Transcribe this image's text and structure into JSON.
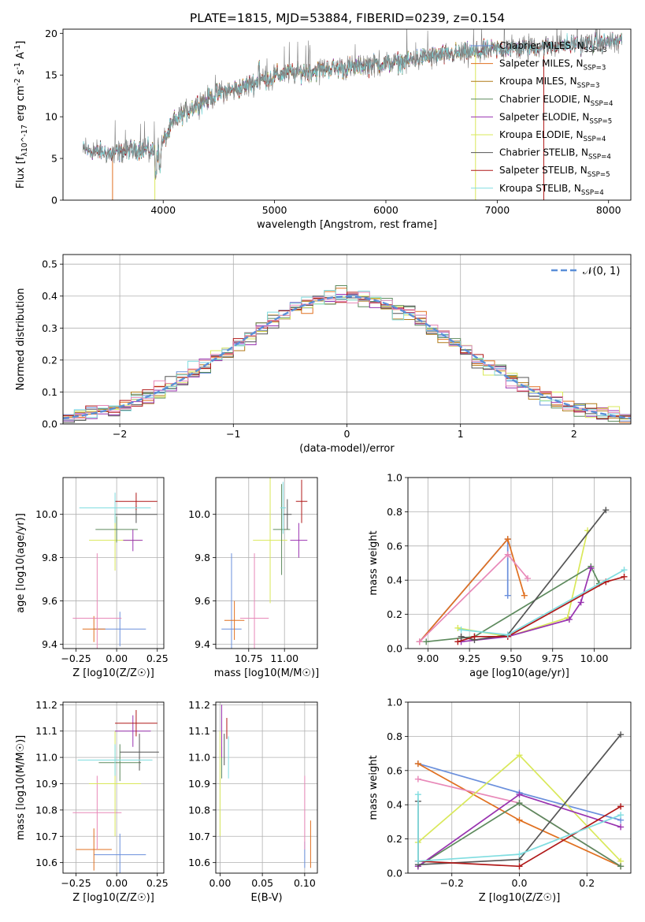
{
  "figure_title": "PLATE=1815, MJD=53884, FIBERID=0239, z=0.154",
  "colors": {
    "chabrier_miles": "#6a8fdc",
    "salpeter_miles": "#e07020",
    "kroupa_miles": "#b07a18",
    "chabrier_elodie": "#5d8a5d",
    "salpeter_elodie": "#9933b0",
    "kroupa_elodie": "#d9e85a",
    "chabrier_stelib": "#555555",
    "salpeter_stelib": "#b01818",
    "kroupa_stelib": "#80dde0",
    "pink": "#e888b8",
    "gaussian": "#5b8fd8"
  },
  "chart_data": [
    {
      "id": "spectrum",
      "type": "line",
      "title": "PLATE=1815, MJD=53884, FIBERID=0239, z=0.154",
      "xlabel": "wavelength [Angstrom, rest frame]",
      "ylabel": "Flux [f_λ10^-17 erg cm^-2 s^-1 A^-1]",
      "xlim": [
        3100,
        8200
      ],
      "ylim": [
        0,
        20.5
      ],
      "xticks": [
        "4000",
        "5000",
        "6000",
        "7000",
        "8000"
      ],
      "yticks": [
        "0",
        "5",
        "10",
        "15",
        "20"
      ],
      "grid": false,
      "legend_position": "top-right",
      "legend": [
        "Chabrier MILES, N_SSP=3",
        "Salpeter MILES, N_SSP=3",
        "Kroupa MILES, N_SSP=3",
        "Chabrier ELODIE, N_SSP=4",
        "Salpeter ELODIE, N_SSP=5",
        "Kroupa ELODIE, N_SSP=4",
        "Chabrier STELIB, N_SSP=4",
        "Salpeter STELIB, N_SSP=5",
        "Kroupa STELIB, N_SSP=4"
      ],
      "continuum_x": [
        3300,
        3550,
        3800,
        3950,
        4100,
        4300,
        4500,
        4700,
        4900,
        5100,
        5300,
        5500,
        5700,
        5900,
        6100,
        6300,
        6500,
        6700,
        6900,
        7100,
        7300,
        7500,
        7700,
        7900,
        8100
      ],
      "continuum_y": [
        6.0,
        5.6,
        6.2,
        5.8,
        9.5,
        11.5,
        12.8,
        13.5,
        14.5,
        15.2,
        15.4,
        15.8,
        15.9,
        16.3,
        16.5,
        17.0,
        17.4,
        17.6,
        17.9,
        18.2,
        18.3,
        18.5,
        18.7,
        18.9,
        19.0
      ]
    },
    {
      "id": "residuals",
      "type": "histogram",
      "xlabel": "(data-model)/error",
      "ylabel": "Normed distribution",
      "xlim": [
        -2.5,
        2.5
      ],
      "ylim": [
        0,
        0.53
      ],
      "xticks": [
        "−2",
        "−1",
        "0",
        "1",
        "2"
      ],
      "yticks": [
        "0.0",
        "0.1",
        "0.2",
        "0.3",
        "0.4",
        "0.5"
      ],
      "grid": true,
      "legend_position": "top-right",
      "legend": [
        "𝒩(0, 1)"
      ],
      "bin_width": 0.1
    },
    {
      "id": "age_vs_z",
      "type": "scatter",
      "xlabel": "Z [log10(Z/Z☉)]",
      "ylabel": "age  [log10(age/yr)]",
      "xlim": [
        -0.33,
        0.29
      ],
      "ylim": [
        9.38,
        10.17
      ],
      "xticks": [
        "−0.25",
        "0.00",
        "0.25"
      ],
      "yticks": [
        "9.4",
        "9.6",
        "9.8",
        "10.0"
      ],
      "grid": true,
      "points": [
        {
          "c": "chabrier_miles",
          "x": 0.02,
          "y": 9.47,
          "xerr": 0.16,
          "yerr": 0.08
        },
        {
          "c": "salpeter_miles",
          "x": -0.14,
          "y": 9.47,
          "xerr": 0.07,
          "yerr": 0.06
        },
        {
          "c": "pink",
          "x": -0.12,
          "y": 9.52,
          "xerr": 0.15,
          "yerr": 0.3
        },
        {
          "c": "kroupa_elodie",
          "x": -0.01,
          "y": 9.88,
          "xerr": 0.16,
          "yerr": 0.14
        },
        {
          "c": "chabrier_elodie",
          "x": 0.0,
          "y": 9.93,
          "xerr": 0.13,
          "yerr": 0.06
        },
        {
          "c": "salpeter_elodie",
          "x": 0.1,
          "y": 9.88,
          "xerr": 0.06,
          "yerr": 0.05
        },
        {
          "c": "chabrier_stelib",
          "x": 0.12,
          "y": 10.0,
          "xerr": 0.13,
          "yerr": 0.04
        },
        {
          "c": "salpeter_stelib",
          "x": 0.12,
          "y": 10.06,
          "xerr": 0.13,
          "yerr": 0.04
        },
        {
          "c": "kroupa_stelib",
          "x": -0.01,
          "y": 10.03,
          "xerr": 0.22,
          "yerr": 0.07
        }
      ]
    },
    {
      "id": "age_vs_mass",
      "type": "scatter",
      "xlabel": "mass [log10(M/M☉)]",
      "ylabel": "",
      "xlim": [
        10.52,
        11.23
      ],
      "ylim": [
        9.38,
        10.17
      ],
      "xticks": [
        "10.75",
        "11.00"
      ],
      "yticks": [
        "9.4",
        "9.6",
        "9.8",
        "10.0"
      ],
      "grid": true,
      "points": [
        {
          "c": "chabrier_miles",
          "x": 10.63,
          "y": 9.47,
          "xerr": 0.07,
          "yerr": 0.35
        },
        {
          "c": "salpeter_miles",
          "x": 10.65,
          "y": 9.51,
          "xerr": 0.07,
          "yerr": 0.09
        },
        {
          "c": "pink",
          "x": 10.79,
          "y": 9.52,
          "xerr": 0.1,
          "yerr": 0.3
        },
        {
          "c": "kroupa_elodie",
          "x": 10.9,
          "y": 9.88,
          "xerr": 0.12,
          "yerr": 0.29
        },
        {
          "c": "chabrier_elodie",
          "x": 10.98,
          "y": 9.93,
          "xerr": 0.06,
          "yerr": 0.21
        },
        {
          "c": "salpeter_elodie",
          "x": 11.1,
          "y": 9.88,
          "xerr": 0.06,
          "yerr": 0.08
        },
        {
          "c": "chabrier_stelib",
          "x": 11.02,
          "y": 10.0,
          "xerr": 0.03,
          "yerr": 0.07
        },
        {
          "c": "salpeter_stelib",
          "x": 11.12,
          "y": 10.06,
          "xerr": 0.04,
          "yerr": 0.1
        },
        {
          "c": "kroupa_stelib",
          "x": 10.99,
          "y": 10.03,
          "xerr": 0.02,
          "yerr": 0.12
        }
      ]
    },
    {
      "id": "mass_weight_vs_age",
      "type": "line",
      "xlabel": "age  [log10(age/yr)]",
      "ylabel": "mass weight",
      "xlim": [
        8.88,
        10.22
      ],
      "ylim": [
        0,
        1
      ],
      "xticks": [
        "9.00",
        "9.25",
        "9.50",
        "9.75",
        "10.00"
      ],
      "yticks": [
        "0.0",
        "0.2",
        "0.4",
        "0.6",
        "0.8",
        "1.0"
      ],
      "grid": true,
      "series": [
        {
          "c": "chabrier_miles",
          "x": [
            8.95,
            9.48,
            9.48
          ],
          "y": [
            0.04,
            0.64,
            0.31
          ]
        },
        {
          "c": "salpeter_miles",
          "x": [
            8.95,
            9.48,
            9.58
          ],
          "y": [
            0.04,
            0.64,
            0.31
          ]
        },
        {
          "c": "pink",
          "x": [
            8.95,
            9.48,
            9.6
          ],
          "y": [
            0.04,
            0.55,
            0.41
          ]
        },
        {
          "c": "kroupa_elodie",
          "x": [
            9.18,
            9.48,
            9.84,
            9.96
          ],
          "y": [
            0.12,
            0.07,
            0.18,
            0.69
          ]
        },
        {
          "c": "chabrier_elodie",
          "x": [
            8.99,
            9.28,
            9.98,
            10.03
          ],
          "y": [
            0.04,
            0.07,
            0.48,
            0.38
          ]
        },
        {
          "c": "salpeter_elodie",
          "x": [
            9.2,
            9.48,
            9.85,
            9.92,
            9.98
          ],
          "y": [
            0.04,
            0.07,
            0.17,
            0.27,
            0.47
          ]
        },
        {
          "c": "chabrier_stelib",
          "x": [
            9.2,
            9.28,
            9.48,
            10.07
          ],
          "y": [
            0.07,
            0.05,
            0.08,
            0.81
          ]
        },
        {
          "c": "salpeter_stelib",
          "x": [
            9.18,
            9.28,
            9.48,
            10.07,
            10.18
          ],
          "y": [
            0.04,
            0.07,
            0.07,
            0.39,
            0.42
          ]
        },
        {
          "c": "kroupa_stelib",
          "x": [
            9.2,
            9.48,
            10.18
          ],
          "y": [
            0.11,
            0.08,
            0.46
          ]
        }
      ]
    },
    {
      "id": "mass_vs_z",
      "type": "scatter",
      "xlabel": "Z [log10(Z/Z☉)]",
      "ylabel": "mass [log10(M/M☉)]",
      "xlim": [
        -0.33,
        0.29
      ],
      "ylim": [
        10.56,
        11.21
      ],
      "xticks": [
        "−0.25",
        "0.00",
        "0.25"
      ],
      "yticks": [
        "10.6",
        "10.7",
        "10.8",
        "10.9",
        "11.0",
        "11.1",
        "11.2"
      ],
      "grid": true,
      "points": [
        {
          "c": "chabrier_miles",
          "x": 0.02,
          "y": 10.63,
          "xerr": 0.16,
          "yerr": 0.08
        },
        {
          "c": "salpeter_miles",
          "x": -0.14,
          "y": 10.65,
          "xerr": 0.11,
          "yerr": 0.08
        },
        {
          "c": "pink",
          "x": -0.12,
          "y": 10.79,
          "xerr": 0.15,
          "yerr": 0.14
        },
        {
          "c": "kroupa_elodie",
          "x": -0.01,
          "y": 10.9,
          "xerr": 0.16,
          "yerr": 0.2
        },
        {
          "c": "chabrier_elodie",
          "x": 0.02,
          "y": 10.98,
          "xerr": 0.13,
          "yerr": 0.07
        },
        {
          "c": "salpeter_elodie",
          "x": 0.1,
          "y": 11.1,
          "xerr": 0.11,
          "yerr": 0.06
        },
        {
          "c": "chabrier_stelib",
          "x": 0.14,
          "y": 11.02,
          "xerr": 0.12,
          "yerr": 0.07
        },
        {
          "c": "salpeter_stelib",
          "x": 0.12,
          "y": 11.13,
          "xerr": 0.13,
          "yerr": 0.05
        },
        {
          "c": "kroupa_stelib",
          "x": -0.01,
          "y": 10.99,
          "xerr": 0.23,
          "yerr": 0.06
        }
      ]
    },
    {
      "id": "mass_vs_ebv",
      "type": "scatter",
      "xlabel": "E(B-V)",
      "ylabel": "",
      "xlim": [
        -0.005,
        0.115
      ],
      "ylim": [
        10.56,
        11.21
      ],
      "xticks": [
        "0.00",
        "0.05",
        "0.10"
      ],
      "yticks": [
        "10.6",
        "10.7",
        "10.8",
        "10.9",
        "11.0",
        "11.1",
        "11.2"
      ],
      "grid": true,
      "points": [
        {
          "c": "chabrier_miles",
          "x": 0.1,
          "y": 10.63,
          "xerr": 0,
          "yerr": 0.05
        },
        {
          "c": "salpeter_miles",
          "x": 0.107,
          "y": 10.67,
          "xerr": 0,
          "yerr": 0.09
        },
        {
          "c": "pink",
          "x": 0.1,
          "y": 10.79,
          "xerr": 0,
          "yerr": 0.14
        },
        {
          "c": "kroupa_elodie",
          "x": 0.0,
          "y": 10.9,
          "xerr": 0,
          "yerr": 0.2
        },
        {
          "c": "chabrier_elodie",
          "x": 0.002,
          "y": 10.98,
          "xerr": 0,
          "yerr": 0.06
        },
        {
          "c": "salpeter_elodie",
          "x": 0.002,
          "y": 11.1,
          "xerr": 0,
          "yerr": 0.1
        },
        {
          "c": "chabrier_stelib",
          "x": 0.005,
          "y": 11.03,
          "xerr": 0,
          "yerr": 0.06
        },
        {
          "c": "salpeter_stelib",
          "x": 0.008,
          "y": 11.11,
          "xerr": 0,
          "yerr": 0.04
        },
        {
          "c": "kroupa_stelib",
          "x": 0.01,
          "y": 11.0,
          "xerr": 0,
          "yerr": 0.08
        }
      ]
    },
    {
      "id": "mass_weight_vs_z",
      "type": "line",
      "xlabel": "Z [log10(Z/Z☉)]",
      "ylabel": "mass weight",
      "xlim": [
        -0.33,
        0.33
      ],
      "ylim": [
        0,
        1
      ],
      "xticks": [
        "−0.2",
        "0.0",
        "0.2"
      ],
      "yticks": [
        "0.0",
        "0.2",
        "0.4",
        "0.6",
        "0.8",
        "1.0"
      ],
      "grid": true,
      "series": [
        {
          "c": "chabrier_miles",
          "x": [
            -0.3,
            0.0,
            0.3
          ],
          "y": [
            0.64,
            0.47,
            0.31
          ]
        },
        {
          "c": "salpeter_miles",
          "x": [
            -0.3,
            0.0,
            0.3
          ],
          "y": [
            0.64,
            0.31,
            0.04
          ]
        },
        {
          "c": "pink",
          "x": [
            -0.3,
            0.0,
            0.3
          ],
          "y": [
            0.55,
            0.41,
            0.04
          ]
        },
        {
          "c": "kroupa_elodie",
          "x": [
            -0.3,
            0.0,
            0.3
          ],
          "y": [
            0.18,
            0.69,
            0.07
          ]
        },
        {
          "c": "chabrier_elodie",
          "x": [
            -0.3,
            0.0,
            0.3
          ],
          "y": [
            0.04,
            0.41,
            0.04
          ]
        },
        {
          "c": "salpeter_elodie",
          "x": [
            -0.3,
            0.0,
            0.3
          ],
          "y": [
            0.04,
            0.46,
            0.27
          ]
        },
        {
          "c": "chabrier_stelib",
          "x": [
            -0.3,
            -0.3,
            0.0,
            0.3
          ],
          "y": [
            0.42,
            0.05,
            0.08,
            0.81
          ]
        },
        {
          "c": "salpeter_stelib",
          "x": [
            -0.3,
            0.0,
            0.3
          ],
          "y": [
            0.07,
            0.04,
            0.39
          ]
        },
        {
          "c": "kroupa_stelib",
          "x": [
            -0.3,
            -0.3,
            0.0,
            0.3
          ],
          "y": [
            0.46,
            0.07,
            0.11,
            0.34
          ]
        }
      ]
    }
  ]
}
